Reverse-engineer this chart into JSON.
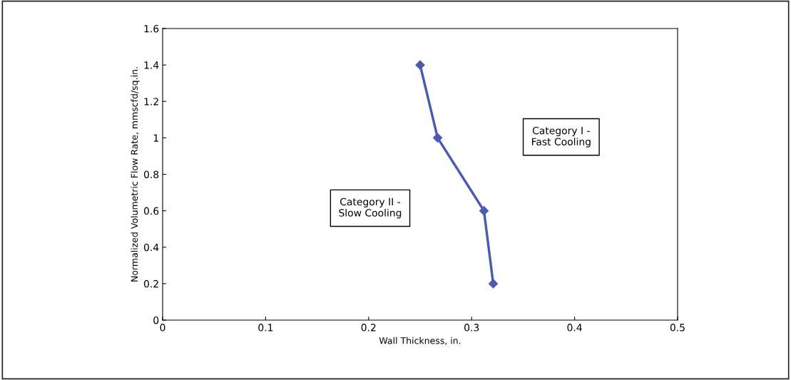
{
  "chart_data": {
    "type": "line",
    "xlabel": "Wall Thickness, in.",
    "ylabel": "Normalized Volumetric Flow Rate, mmscfd/sq.in.",
    "x": [
      0.25,
      0.267,
      0.312,
      0.321
    ],
    "series": [
      {
        "color": "#4a5cb0",
        "values": [
          1.4,
          1.0,
          0.6,
          0.2
        ]
      }
    ],
    "xlim": [
      0,
      0.5
    ],
    "xticks": [
      0,
      0.1,
      0.2,
      0.3,
      0.4,
      0.5
    ],
    "ylim": [
      0,
      1.6
    ],
    "yticks": [
      0,
      0.2,
      0.4,
      0.6,
      0.8,
      1,
      1.2,
      1.4,
      1.6
    ],
    "marker": "diamond",
    "line_style": "solid",
    "grid": false,
    "legend": false,
    "annotations": [
      "Category I -\nFast Cooling",
      "Category II -\nSlow Cooling"
    ]
  }
}
